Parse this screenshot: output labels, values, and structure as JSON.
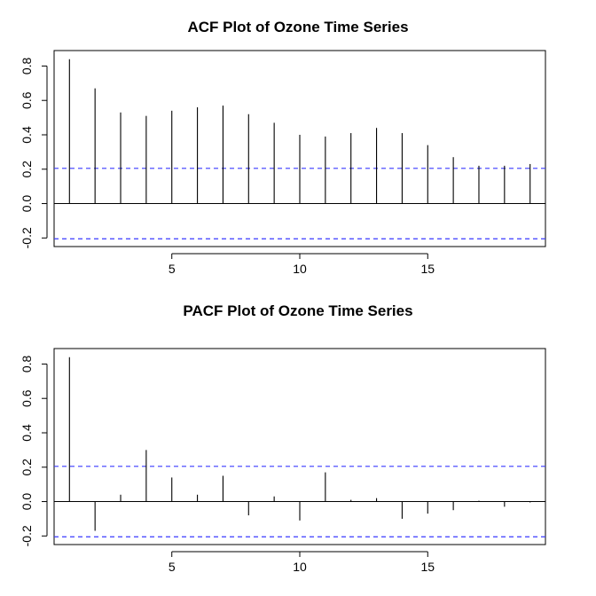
{
  "chart_data": [
    {
      "type": "bar",
      "title": "ACF Plot of Ozone Time Series",
      "xlabel": "",
      "ylabel": "",
      "x": [
        1,
        2,
        3,
        4,
        5,
        6,
        7,
        8,
        9,
        10,
        11,
        12,
        13,
        14,
        15,
        16,
        17,
        18,
        19
      ],
      "values": [
        0.84,
        0.67,
        0.53,
        0.51,
        0.54,
        0.56,
        0.57,
        0.52,
        0.47,
        0.4,
        0.39,
        0.41,
        0.44,
        0.41,
        0.34,
        0.27,
        0.22,
        0.22,
        0.23
      ],
      "confidence_bound": 0.205,
      "xlim": [
        0.4,
        19.6
      ],
      "ylim": [
        -0.25,
        0.89
      ],
      "xticks": [
        "5",
        "10",
        "15"
      ],
      "yticks": [
        "-0.2",
        "0.0",
        "0.2",
        "0.4",
        "0.6",
        "0.8"
      ],
      "grid": false,
      "bar_color": "#000000",
      "bound_color": "#3a3aff"
    },
    {
      "type": "bar",
      "title": "PACF Plot of Ozone Time Series",
      "xlabel": "",
      "ylabel": "",
      "x": [
        1,
        2,
        3,
        4,
        5,
        6,
        7,
        8,
        9,
        10,
        11,
        12,
        13,
        14,
        15,
        16,
        17,
        18,
        19
      ],
      "values": [
        0.84,
        -0.17,
        0.04,
        0.3,
        0.14,
        0.04,
        0.15,
        -0.08,
        0.03,
        -0.11,
        0.17,
        0.01,
        0.02,
        -0.1,
        -0.07,
        -0.05,
        0.005,
        -0.03,
        -0.005
      ],
      "confidence_bound": 0.205,
      "xlim": [
        0.4,
        19.6
      ],
      "ylim": [
        -0.25,
        0.89
      ],
      "xticks": [
        "5",
        "10",
        "15"
      ],
      "yticks": [
        "-0.2",
        "0.0",
        "0.2",
        "0.4",
        "0.6",
        "0.8"
      ],
      "grid": false,
      "bar_color": "#000000",
      "bound_color": "#3a3aff"
    }
  ]
}
